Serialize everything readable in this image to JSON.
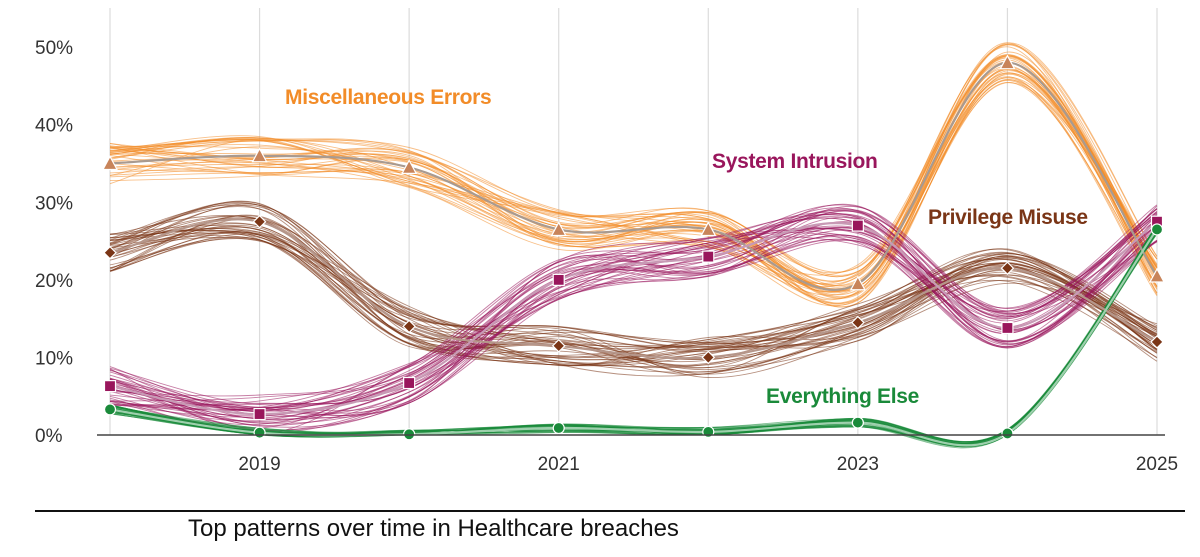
{
  "chart_data": {
    "type": "line",
    "title": "Top patterns over time in Healthcare breaches",
    "xlabel": "",
    "ylabel": "",
    "x": [
      2018,
      2019,
      2020,
      2021,
      2022,
      2023,
      2024,
      2025
    ],
    "x_tick_labels": [
      "2019",
      "2021",
      "2023",
      "2025"
    ],
    "x_tick_values": [
      2019,
      2021,
      2023,
      2025
    ],
    "y_tick_labels": [
      "0%",
      "10%",
      "20%",
      "30%",
      "40%",
      "50%"
    ],
    "y_tick_values": [
      0,
      10,
      20,
      30,
      40,
      50
    ],
    "ylim": [
      0,
      53
    ],
    "xlim": [
      2018,
      2025
    ],
    "grid": "vertical",
    "series": [
      {
        "name": "Miscellaneous Errors",
        "color": "#f28c28",
        "center_color": "#a89a90",
        "marker": "triangle",
        "values": [
          35,
          36,
          34.5,
          26.5,
          26.5,
          19.5,
          48,
          20.5
        ]
      },
      {
        "name": "Privilege Misuse",
        "color": "#7a3516",
        "center_color": "#b5968a",
        "marker": "diamond",
        "values": [
          23.5,
          27.5,
          14,
          11.5,
          10,
          14.5,
          21.5,
          12
        ]
      },
      {
        "name": "System Intrusion",
        "color": "#99165c",
        "center_color": "#c89ab5",
        "marker": "square",
        "values": [
          6.3,
          2.7,
          6.7,
          20,
          23,
          27,
          13.8,
          27.5
        ]
      },
      {
        "name": "Everything Else",
        "color": "#1a8a3a",
        "center_color": "#9ed0ad",
        "marker": "circle",
        "values": [
          3.3,
          0.3,
          0.1,
          0.9,
          0.4,
          1.6,
          0.2,
          26.5
        ]
      }
    ]
  }
}
